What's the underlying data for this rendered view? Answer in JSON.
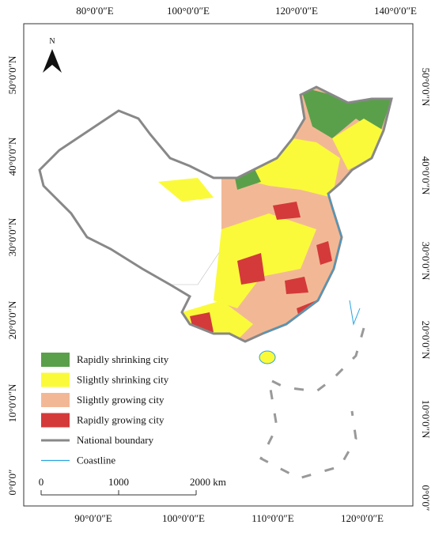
{
  "map": {
    "top_labels": [
      "80°0′0″E",
      "100°0′0″E",
      "120°0′0″E",
      "140°0′0″E"
    ],
    "bottom_labels": [
      "90°0′0″E",
      "100°0′0″E",
      "110°0′0″E",
      "120°0′0″E"
    ],
    "left_labels": [
      "50°0′0″N",
      "40°0′0″N",
      "30°0′0″N",
      "20°0′0″N",
      "10°0′0″N",
      "0°0′0″"
    ],
    "right_labels": [
      "50°0′0″N",
      "40°0′0″N",
      "30°0′0″N",
      "20°0′0″N",
      "10°0′0″N",
      "0°0′0″"
    ],
    "north": "N",
    "legend": [
      {
        "label": "Rapidly shrinking city",
        "color": "#5aa04a"
      },
      {
        "label": "Slightly shrinking city",
        "color": "#fafa3a"
      },
      {
        "label": "Slightly growing city",
        "color": "#f2b896"
      },
      {
        "label": "Rapidly growing city",
        "color": "#d43a3a"
      },
      {
        "label": "National boundary"
      },
      {
        "label": "Coastline"
      }
    ],
    "scale_labels": [
      "0",
      "1000",
      "2000 km"
    ]
  }
}
